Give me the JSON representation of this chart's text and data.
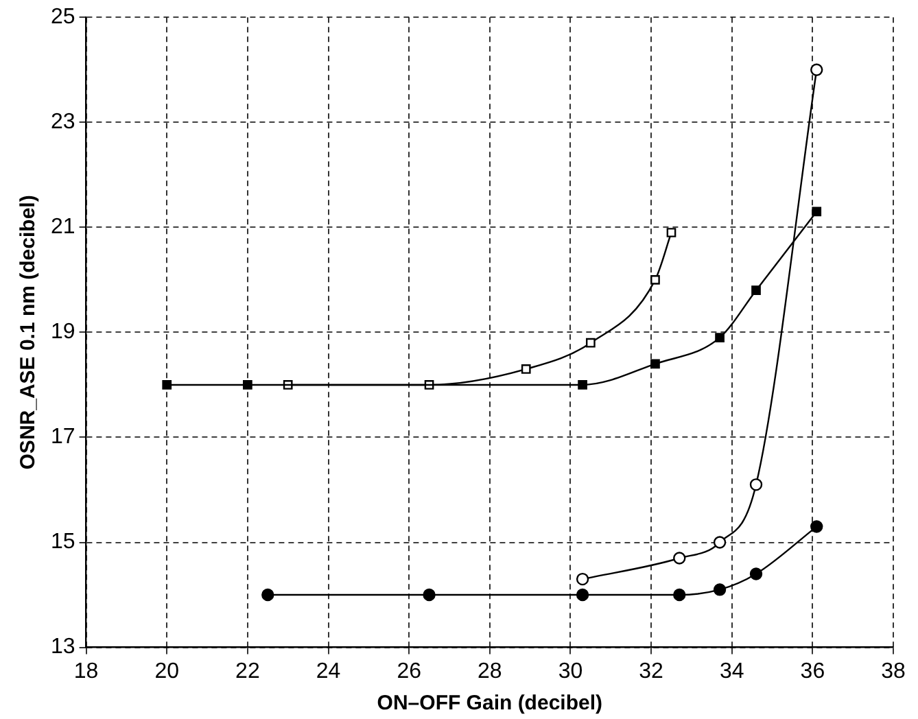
{
  "chart_data": {
    "type": "line",
    "xlabel": "ON–OFF Gain (decibel)",
    "ylabel": "OSNR_ASE 0.1 nm (decibel)",
    "xlim": [
      18,
      38
    ],
    "xticks": [
      18,
      20,
      22,
      24,
      26,
      28,
      30,
      32,
      34,
      36,
      38
    ],
    "ylim": [
      13,
      25
    ],
    "yticks": [
      13,
      15,
      17,
      19,
      21,
      23,
      25
    ],
    "grid": true,
    "line_style": "solid",
    "legend": false,
    "series": [
      {
        "color": "#000000",
        "marker": "square",
        "x": [
          20,
          22,
          30.3,
          32.1,
          33.7,
          34.6,
          36.1
        ],
        "values": [
          18,
          18,
          18,
          18.4,
          18.9,
          19.8,
          21.3
        ]
      },
      {
        "color": "#000000",
        "marker": "square",
        "x": [
          23,
          26.5,
          28.9,
          30.5,
          32.1,
          32.5
        ],
        "values": [
          18,
          18,
          18.3,
          18.8,
          20,
          20.9
        ]
      },
      {
        "color": "#000000",
        "marker": "circle",
        "x": [
          30.3,
          32.7,
          33.7,
          34.6,
          36.1
        ],
        "values": [
          14.3,
          14.7,
          15,
          16.1,
          24
        ]
      },
      {
        "color": "#000000",
        "marker": "circle",
        "x": [
          22.5,
          26.5,
          30.3,
          32.7,
          33.7,
          34.6,
          36.1
        ],
        "values": [
          14,
          14,
          14,
          14,
          14.1,
          14.4,
          15.3
        ]
      }
    ]
  }
}
